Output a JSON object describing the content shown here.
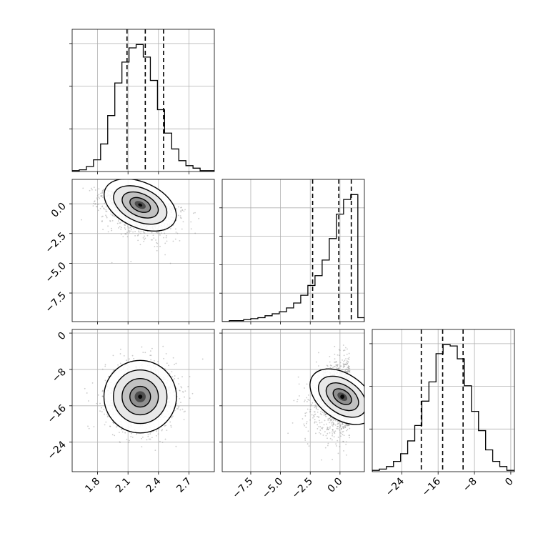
{
  "chart_data": {
    "type": "corner",
    "grid": true,
    "parameters": [
      {
        "range": [
          1.55,
          2.95
        ],
        "ticks": [
          "1.8",
          "2.1",
          "2.4",
          "2.7"
        ],
        "tick_values": [
          1.8,
          2.1,
          2.4,
          2.7
        ]
      },
      {
        "range": [
          -9.9,
          2.05
        ],
        "ticks": [
          "−7.5",
          "−5.0",
          "−2.5",
          "0.0"
        ],
        "tick_values": [
          -7.5,
          -5.0,
          -2.5,
          0.0
        ]
      },
      {
        "range": [
          -30.5,
          0.8
        ],
        "ticks": [
          "−24",
          "−16",
          "−8",
          "0"
        ],
        "tick_values": [
          -24,
          -16,
          -8,
          0
        ]
      }
    ],
    "histograms": [
      {
        "param": 0,
        "bin_edges": [
          1.55,
          1.62,
          1.69,
          1.76,
          1.83,
          1.9,
          1.97,
          2.04,
          2.11,
          2.18,
          2.25,
          2.32,
          2.39,
          2.46,
          2.53,
          2.6,
          2.67,
          2.74,
          2.81,
          2.88,
          2.95
        ],
        "counts": [
          1,
          2,
          6,
          14,
          33,
          67,
          106,
          131,
          148,
          152,
          137,
          109,
          74,
          46,
          27,
          13,
          7,
          4,
          1,
          1
        ],
        "quantiles": [
          2.09,
          2.27,
          2.45
        ]
      },
      {
        "param": 1,
        "bin_edges": [
          -9.9,
          -9.3,
          -8.7,
          -8.1,
          -7.5,
          -6.9,
          -6.3,
          -5.7,
          -5.1,
          -4.5,
          -3.9,
          -3.3,
          -2.7,
          -2.1,
          -1.5,
          -0.9,
          -0.3,
          0.3,
          0.9,
          1.5,
          2.05
        ],
        "counts": [
          0,
          1,
          1,
          2,
          3,
          4,
          6,
          8,
          10,
          14,
          19,
          27,
          37,
          47,
          63,
          85,
          110,
          125,
          130,
          4
        ],
        "quantiles": [
          -2.3,
          -0.1,
          0.95
        ]
      },
      {
        "param": 2,
        "bin_edges": [
          -30.5,
          -28.94,
          -27.38,
          -25.82,
          -24.26,
          -22.7,
          -21.14,
          -19.58,
          -18.02,
          -16.46,
          -14.9,
          -13.34,
          -11.78,
          -10.22,
          -8.66,
          -7.1,
          -5.54,
          -3.98,
          -2.42,
          -0.86,
          0.8
        ],
        "counts": [
          1,
          2,
          4,
          8,
          14,
          24,
          36,
          55,
          70,
          92,
          99,
          98,
          88,
          67,
          47,
          32,
          17,
          8,
          4,
          1
        ],
        "quantiles": [
          -19.7,
          -15.0,
          -10.5
        ]
      }
    ],
    "joint": [
      {
        "x_param": 0,
        "y_param": 1,
        "mean": [
          2.22,
          -0.1
        ],
        "sd": [
          0.18,
          0.9
        ],
        "tilt": -1.2
      },
      {
        "x_param": 0,
        "y_param": 2,
        "mean": [
          2.22,
          -14.0
        ],
        "sd": [
          0.17,
          3.8
        ],
        "tilt": 0
      },
      {
        "x_param": 1,
        "y_param": 2,
        "mean": [
          0.2,
          -14.0
        ],
        "sd": [
          0.9,
          3.8
        ],
        "tilt": 1.6
      }
    ],
    "contour_levels": [
      "0.5-sigma",
      "1-sigma",
      "1.5-sigma",
      "2-sigma"
    ]
  },
  "colors": {
    "line": "#000000",
    "grid": "#b0b0b0",
    "scatter": "#8c8c8c"
  }
}
